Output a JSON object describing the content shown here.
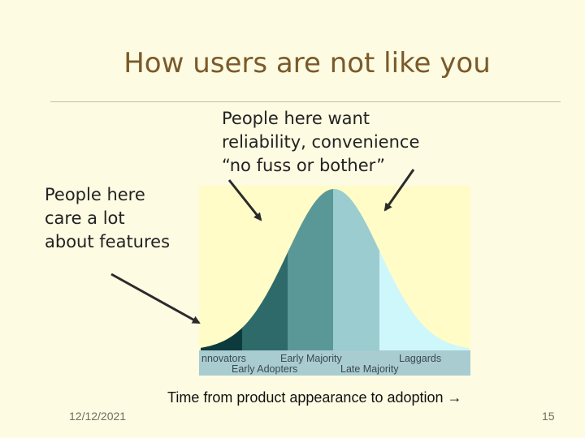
{
  "slide": {
    "title": "How users are not like you",
    "note_top": [
      "People here want",
      "reliability, convenience",
      "“no fuss or bother”"
    ],
    "note_left": [
      "People here",
      "care a lot",
      "about features"
    ],
    "axis_label": "Time from product appearance to adoption",
    "axis_arrow": "→",
    "date": "12/12/2021",
    "page_number": "15"
  },
  "curve": {
    "segments": [
      {
        "name": "Innovators",
        "visible_label": "nnovators",
        "color": "#0d3a3c"
      },
      {
        "name": "Early Adopters",
        "visible_label": "Early Adopters",
        "color": "#2f6a6b"
      },
      {
        "name": "Early Majority",
        "visible_label": "Early Majority",
        "color": "#5a9898"
      },
      {
        "name": "Late Majority",
        "visible_label": "Late Majority",
        "color": "#9bcccf"
      },
      {
        "name": "Laggards",
        "visible_label": "Laggards",
        "color": "#cdf7fb"
      }
    ],
    "background_color": "#fffcc8",
    "label_band_color": "#a9ccd0"
  }
}
